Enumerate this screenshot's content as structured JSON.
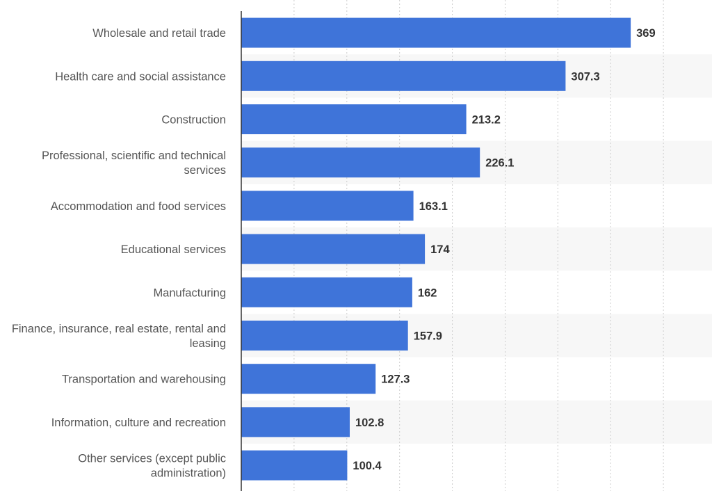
{
  "chart_data": {
    "type": "bar",
    "orientation": "horizontal",
    "categories": [
      "Wholesale and retail trade",
      "Health care and social assistance",
      "Construction",
      "Professional, scientific and technical services",
      "Accommodation and food services",
      "Educational services",
      "Manufacturing",
      "Finance, insurance, real estate, rental and leasing",
      "Transportation and warehousing",
      "Information, culture and recreation",
      "Other services (except public administration)"
    ],
    "category_lines": [
      [
        "Wholesale and retail trade"
      ],
      [
        "Health care and social assistance"
      ],
      [
        "Construction"
      ],
      [
        "Professional, scientific and technical",
        "services"
      ],
      [
        "Accommodation and food services"
      ],
      [
        "Educational services"
      ],
      [
        "Manufacturing"
      ],
      [
        "Finance, insurance, real estate, rental and",
        "leasing"
      ],
      [
        "Transportation and warehousing"
      ],
      [
        "Information, culture and recreation"
      ],
      [
        "Other services (except public",
        "administration)"
      ]
    ],
    "values": [
      369,
      307.3,
      213.2,
      226.1,
      163.1,
      174,
      162,
      157.9,
      127.3,
      102.8,
      100.4
    ],
    "value_labels": [
      "369",
      "307.3",
      "213.2",
      "226.1",
      "163.1",
      "174",
      "162",
      "157.9",
      "127.3",
      "102.8",
      "100.4"
    ],
    "xlim": [
      0,
      400
    ],
    "x_gridline_step": 50,
    "grid": true,
    "bar_color": "#3f74d9",
    "alternate_row_color": "#f7f7f7",
    "title": "",
    "xlabel": "",
    "ylabel": ""
  }
}
